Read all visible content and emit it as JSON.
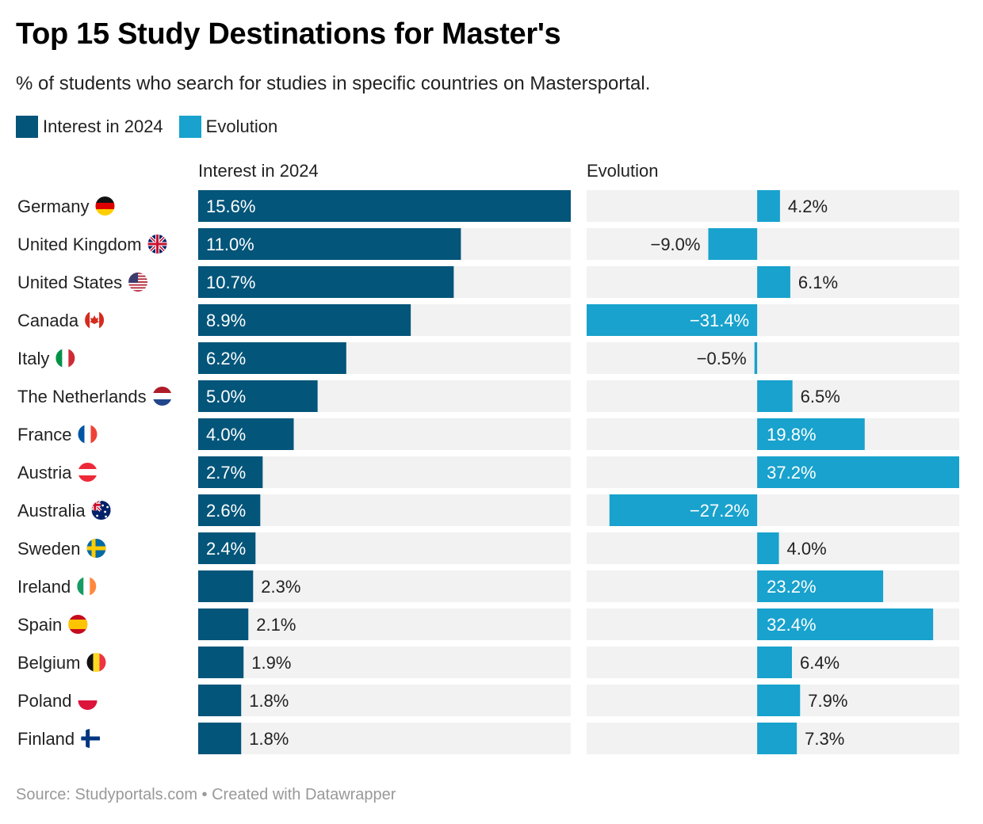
{
  "title": "Top 15 Study Destinations for Master's",
  "subtitle": "% of students who search for studies in specific countries on Mastersportal.",
  "legend": [
    {
      "label": "Interest in 2024",
      "color": "#03557a"
    },
    {
      "label": "Evolution",
      "color": "#18a2cd"
    }
  ],
  "source": "Source: Studyportals.com • Created with Datawrapper",
  "chart_data": {
    "type": "bar",
    "orientation": "horizontal",
    "title": "Top 15 Study Destinations for Master's",
    "categories": [
      "Germany",
      "United Kingdom",
      "United States",
      "Canada",
      "Italy",
      "The Netherlands",
      "France",
      "Austria",
      "Australia",
      "Sweden",
      "Ireland",
      "Spain",
      "Belgium",
      "Poland",
      "Finland"
    ],
    "flags": [
      "germany-flag-icon",
      "uk-flag-icon",
      "us-flag-icon",
      "canada-flag-icon",
      "italy-flag-icon",
      "netherlands-flag-icon",
      "france-flag-icon",
      "austria-flag-icon",
      "australia-flag-icon",
      "sweden-flag-icon",
      "ireland-flag-icon",
      "spain-flag-icon",
      "belgium-flag-icon",
      "poland-flag-icon",
      "finland-flag-icon"
    ],
    "series": [
      {
        "name": "Interest in 2024",
        "color": "#03557a",
        "values": [
          15.6,
          11.0,
          10.7,
          8.9,
          6.2,
          5.0,
          4.0,
          2.7,
          2.6,
          2.4,
          2.3,
          2.1,
          1.9,
          1.8,
          1.8
        ],
        "labels": [
          "15.6%",
          "11.0%",
          "10.7%",
          "8.9%",
          "6.2%",
          "5.0%",
          "4.0%",
          "2.7%",
          "2.6%",
          "2.4%",
          "2.3%",
          "2.1%",
          "1.9%",
          "1.8%",
          "1.8%"
        ],
        "xlim": [
          0,
          15.6
        ]
      },
      {
        "name": "Evolution",
        "color": "#18a2cd",
        "values": [
          4.2,
          -9.0,
          6.1,
          -31.4,
          -0.5,
          6.5,
          19.8,
          37.2,
          -27.2,
          4.0,
          23.2,
          32.4,
          6.4,
          7.9,
          7.3
        ],
        "labels": [
          "4.2%",
          "−9.0%",
          "6.1%",
          "−31.4%",
          "−0.5%",
          "6.5%",
          "19.8%",
          "37.2%",
          "−27.2%",
          "4.0%",
          "23.2%",
          "32.4%",
          "6.4%",
          "7.9%",
          "7.3%"
        ],
        "xlim": [
          -31.4,
          37.2
        ]
      }
    ],
    "background_bar_color": "#f2f2f2",
    "grid": false,
    "legend_position": "top-left"
  }
}
